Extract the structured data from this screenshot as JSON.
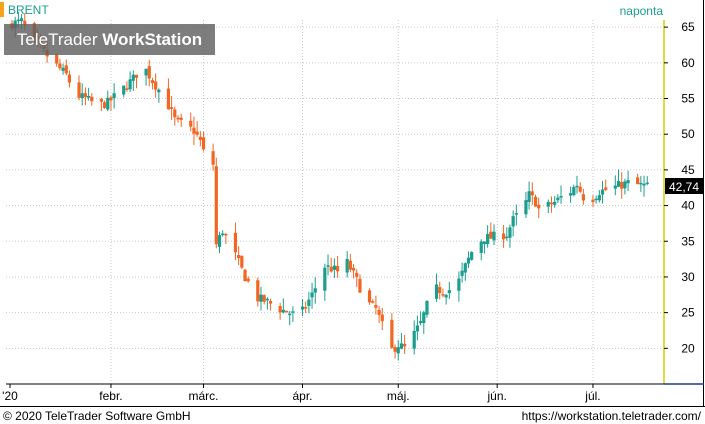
{
  "header": {
    "symbol": "BRENT",
    "interval": "naponta"
  },
  "watermark": {
    "brand": "TeleTrader",
    "product": "WorkStation"
  },
  "footer": {
    "copyright": "© 2020 TeleTrader Software GmbH",
    "url": "https://workstation.teletrader.com/"
  },
  "colors": {
    "up": "#1b9e8d",
    "down": "#f26522",
    "accent": "#f7a21b",
    "axis_right": "#d4d100",
    "grid": "#c8c8c8",
    "last_box": "#000000"
  },
  "chart_data": {
    "type": "candlestick",
    "title": "BRENT",
    "ylim": [
      15,
      66
    ],
    "y_ticks": [
      20,
      25,
      30,
      35,
      40,
      45,
      50,
      55,
      60,
      65
    ],
    "x_labels": [
      "'20",
      "febr.",
      "márc.",
      "ápr.",
      "máj.",
      "jún.",
      "júl."
    ],
    "x_label_days": [
      0,
      31,
      60,
      91,
      121,
      152,
      182
    ],
    "last_value": "42,74",
    "last": 42.74,
    "close_anchors": [
      [
        0,
        65.5
      ],
      [
        3,
        65.8
      ],
      [
        6,
        63.5
      ],
      [
        9,
        62.0
      ],
      [
        13,
        60.0
      ],
      [
        17,
        58.3
      ],
      [
        20,
        55.5
      ],
      [
        23,
        55.0
      ],
      [
        27,
        54.0
      ],
      [
        30,
        54.4
      ],
      [
        34,
        56.0
      ],
      [
        38,
        57.8
      ],
      [
        41,
        59.7
      ],
      [
        44,
        57.5
      ],
      [
        48,
        55.0
      ],
      [
        51,
        52.0
      ],
      [
        54,
        51.2
      ],
      [
        57,
        50.5
      ],
      [
        59,
        49.0
      ],
      [
        60,
        47.5
      ],
      [
        63,
        45.8
      ],
      [
        64,
        34.5
      ],
      [
        66,
        36.5
      ],
      [
        70,
        33.0
      ],
      [
        73,
        30.0
      ],
      [
        77,
        27.0
      ],
      [
        80,
        26.5
      ],
      [
        84,
        25.5
      ],
      [
        88,
        24.8
      ],
      [
        91,
        25.2
      ],
      [
        94,
        27.5
      ],
      [
        98,
        31.5
      ],
      [
        101,
        31.0
      ],
      [
        103,
        30.5
      ],
      [
        105,
        32.0
      ],
      [
        108,
        29.5
      ],
      [
        111,
        26.5
      ],
      [
        114,
        25.5
      ],
      [
        117,
        22.0
      ],
      [
        119,
        19.8
      ],
      [
        121,
        20.5
      ],
      [
        123,
        20.0
      ],
      [
        126,
        22.0
      ],
      [
        128,
        23.5
      ],
      [
        130,
        26.0
      ],
      [
        132,
        28.5
      ],
      [
        135,
        28.0
      ],
      [
        138,
        28.3
      ],
      [
        140,
        29.5
      ],
      [
        142,
        31.5
      ],
      [
        145,
        34.5
      ],
      [
        148,
        35.5
      ],
      [
        150,
        35.5
      ],
      [
        152,
        35.8
      ],
      [
        155,
        36.0
      ],
      [
        157,
        38.0
      ],
      [
        159,
        39.0
      ],
      [
        161,
        40.5
      ],
      [
        162,
        41.5
      ],
      [
        164,
        40.5
      ],
      [
        166,
        38.5
      ],
      [
        168,
        40.0
      ],
      [
        170,
        40.5
      ],
      [
        173,
        41.5
      ],
      [
        175,
        42.0
      ],
      [
        177,
        43.0
      ],
      [
        179,
        41.2
      ],
      [
        181,
        40.6
      ],
      [
        184,
        42.0
      ],
      [
        187,
        42.3
      ],
      [
        190,
        42.8
      ],
      [
        193,
        43.2
      ],
      [
        196,
        42.9
      ],
      [
        199,
        42.74
      ]
    ]
  }
}
